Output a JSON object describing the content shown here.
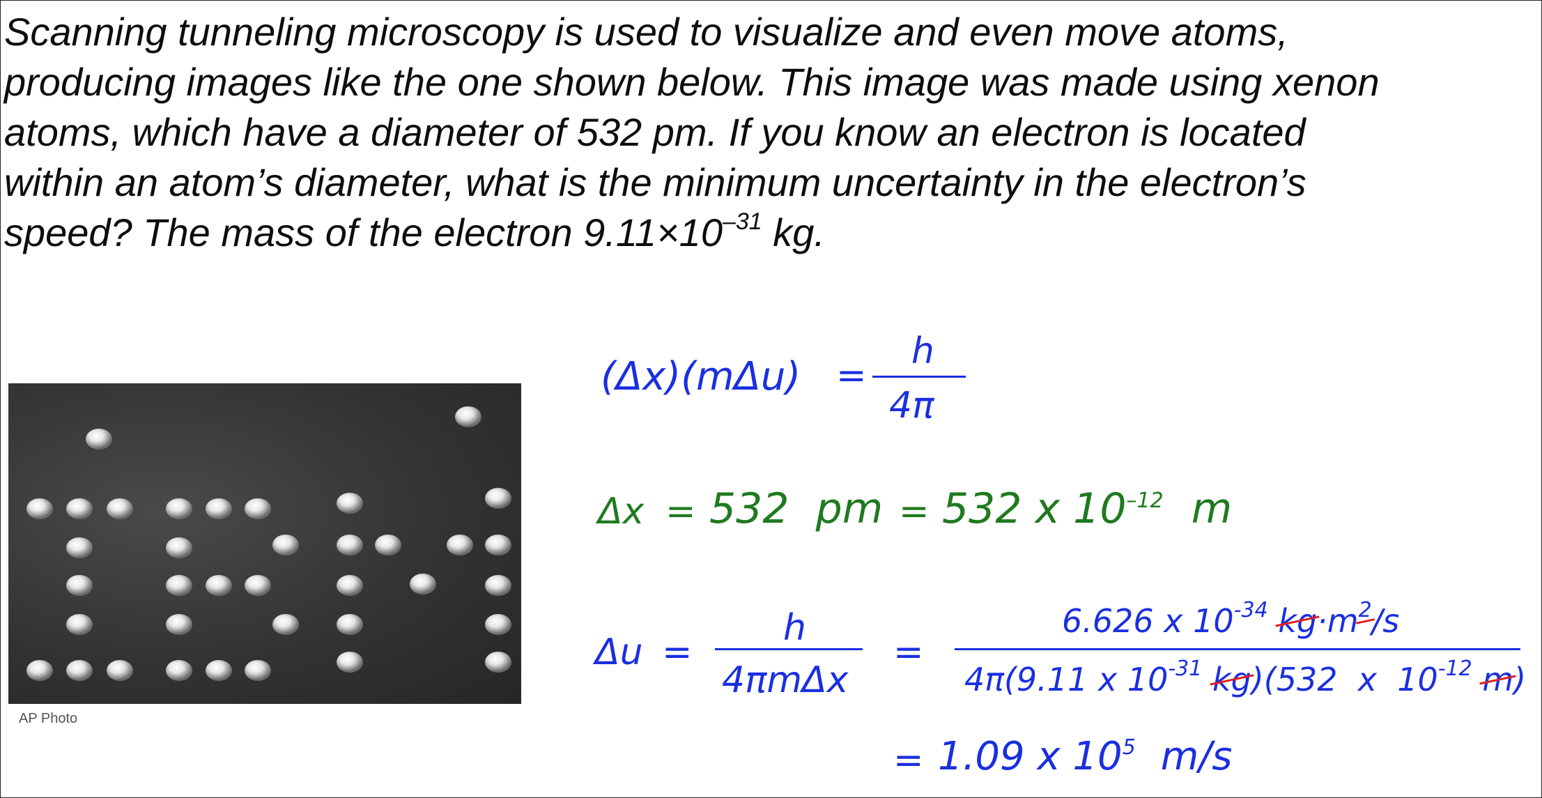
{
  "problem": {
    "line1": "Scanning tunneling microscopy is used to visualize and even move atoms,",
    "line2": "producing images like the one shown below. This image was made using xenon",
    "line3": "atoms, which have a diameter of 532 pm. If you know an electron is located",
    "line4": "within an atom’s diameter, what is the minimum uncertainty in the electron’s",
    "line5_pre": "speed? The mass of the electron 9.11×10",
    "line5_exp": "–31",
    "line5_post": " kg."
  },
  "photo": {
    "credit": "AP Photo"
  },
  "eq1": {
    "lhs": "(Δx)(mΔu)",
    "eq": "=",
    "num": "h",
    "den": "4π"
  },
  "eq2": {
    "lhs": "Δx",
    "eq1": "=",
    "mid": "532  pm",
    "eq2": "=",
    "rhs_base": "532 x 10",
    "rhs_exp": "–12",
    "rhs_unit": "m"
  },
  "eq3": {
    "lhs": "Δu",
    "eq1": "=",
    "num": "h",
    "den": "4πmΔx",
    "eq2": "=",
    "bignum_base": "6.626 x 10",
    "bignum_exp": "-34",
    "bignum_kg": "kg",
    "bignum_dot": "·",
    "bignum_m": "m",
    "bignum_m_exp": "2",
    "bignum_tail": "/s",
    "bigden_a": "4π(9.11 x 10",
    "bigden_a_exp": "-31",
    "bigden_kg": "kg",
    "bigden_b": ")(532  x  10",
    "bigden_b_exp": "-12",
    "bigden_m": "m",
    "bigden_close": ")"
  },
  "eq4": {
    "eq": "=",
    "base": "1.09 x 10",
    "exp": "5",
    "unit": "m/s"
  },
  "colors": {
    "ink_blue": "#1a2fe0",
    "ink_green": "#1f7a1f",
    "strike_red": "#e02020"
  }
}
